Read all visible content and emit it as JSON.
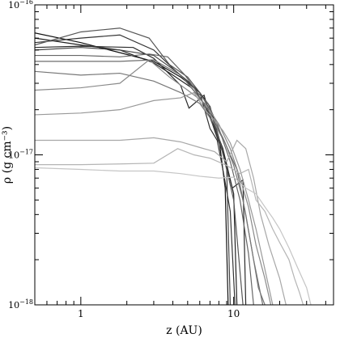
{
  "chart_data": {
    "type": "line",
    "title": "",
    "xlabel": "z (AU)",
    "ylabel": "ρ (g cm⁻³)",
    "x_scale": "log",
    "y_scale": "log",
    "xlim": [
      0.5,
      45
    ],
    "ylim": [
      1e-18,
      1e-16
    ],
    "x_ticks": [
      {
        "value": 1,
        "label": "1"
      },
      {
        "value": 10,
        "label": "10"
      }
    ],
    "y_ticks": [
      {
        "value": 1e-18,
        "mantissa": "10",
        "exponent": "−18"
      },
      {
        "value": 1e-17,
        "mantissa": "10",
        "exponent": "−17"
      },
      {
        "value": 1e-16,
        "mantissa": "10",
        "exponent": "−16"
      }
    ],
    "grid": false,
    "legend": "none",
    "series": [
      {
        "color": "#111111",
        "points": [
          [
            0.5,
            6.5e-17
          ],
          [
            1.0,
            5.6e-17
          ],
          [
            1.8,
            4.8e-17
          ],
          [
            3.0,
            4.2e-17
          ],
          [
            4.5,
            3.3e-17
          ],
          [
            6.0,
            2.6e-17
          ],
          [
            7.0,
            2.1e-17
          ],
          [
            8.0,
            1.3e-17
          ],
          [
            8.8,
            6e-18
          ],
          [
            9.2,
            1e-18
          ]
        ]
      },
      {
        "color": "#222222",
        "points": [
          [
            0.5,
            6e-17
          ],
          [
            1.0,
            5.4e-17
          ],
          [
            1.8,
            5e-17
          ],
          [
            3.0,
            4.1e-17
          ],
          [
            4.0,
            3.4e-17
          ],
          [
            5.3,
            2.8e-17
          ],
          [
            6.4,
            2.2e-17
          ],
          [
            7.3,
            1.65e-17
          ],
          [
            8.5,
            1.1e-17
          ],
          [
            10.0,
            5.5e-18
          ],
          [
            10.5,
            1e-18
          ]
        ]
      },
      {
        "color": "#333333",
        "points": [
          [
            0.5,
            5.6e-17
          ],
          [
            1.0,
            6e-17
          ],
          [
            1.8,
            6.3e-17
          ],
          [
            3.0,
            5e-17
          ],
          [
            4.2,
            3.6e-17
          ],
          [
            5.2,
            3e-17
          ],
          [
            6.0,
            2.6e-17
          ],
          [
            7.0,
            1.5e-17
          ],
          [
            7.8,
            1.25e-17
          ],
          [
            8.6,
            7.5e-18
          ],
          [
            9.5,
            4.2e-18
          ],
          [
            10.2,
            1e-18
          ]
        ]
      },
      {
        "color": "#2a2a2a",
        "points": [
          [
            0.5,
            5.2e-17
          ],
          [
            1.0,
            5.3e-17
          ],
          [
            2.2,
            5.2e-17
          ],
          [
            3.0,
            4.4e-17
          ],
          [
            4.5,
            2.9e-17
          ],
          [
            5.1,
            2.05e-17
          ],
          [
            6.4,
            2.5e-17
          ],
          [
            7.0,
            1.8e-17
          ],
          [
            7.6,
            1.4e-17
          ],
          [
            8.6,
            1e-17
          ],
          [
            9.8,
            6e-18
          ],
          [
            11.5,
            6.8e-18
          ],
          [
            12.0,
            1e-18
          ]
        ]
      },
      {
        "color": "#444444",
        "points": [
          [
            0.5,
            5e-17
          ],
          [
            1.0,
            5.2e-17
          ],
          [
            1.8,
            5e-17
          ],
          [
            3.0,
            4.6e-17
          ],
          [
            4.2,
            3.6e-17
          ],
          [
            5.5,
            2.8e-17
          ],
          [
            6.5,
            2.1e-17
          ],
          [
            7.5,
            1.5e-17
          ],
          [
            8.3,
            1.15e-17
          ],
          [
            9.0,
            8e-18
          ],
          [
            9.5,
            1e-18
          ]
        ]
      },
      {
        "color": "#555555",
        "points": [
          [
            0.5,
            5.4e-17
          ],
          [
            1.0,
            6.6e-17
          ],
          [
            1.8,
            7e-17
          ],
          [
            2.8,
            6e-17
          ],
          [
            3.8,
            4e-17
          ],
          [
            5.0,
            3.3e-17
          ],
          [
            6.0,
            2.6e-17
          ],
          [
            7.0,
            2e-17
          ],
          [
            8.0,
            1.3e-17
          ],
          [
            9.0,
            8e-18
          ],
          [
            10.0,
            5e-18
          ],
          [
            11.5,
            1e-18
          ]
        ]
      },
      {
        "color": "#666666",
        "points": [
          [
            0.5,
            4.6e-17
          ],
          [
            1.0,
            4.6e-17
          ],
          [
            1.8,
            4.5e-17
          ],
          [
            2.8,
            4.7e-17
          ],
          [
            3.7,
            4.5e-17
          ],
          [
            4.8,
            3.4e-17
          ],
          [
            5.8,
            2.6e-17
          ],
          [
            6.8,
            2.2e-17
          ],
          [
            8.0,
            1.5e-17
          ],
          [
            9.5,
            9e-18
          ],
          [
            11.0,
            5e-18
          ],
          [
            12.5,
            2.2e-18
          ],
          [
            13.5,
            1e-18
          ]
        ]
      },
      {
        "color": "#6e6e6e",
        "points": [
          [
            0.5,
            4.2e-17
          ],
          [
            1.0,
            4.2e-17
          ],
          [
            1.8,
            4.2e-17
          ],
          [
            3.0,
            4.3e-17
          ],
          [
            4.5,
            3.4e-17
          ],
          [
            6.0,
            2.4e-17
          ],
          [
            7.0,
            1.9e-17
          ],
          [
            8.5,
            1.3e-17
          ],
          [
            9.5,
            1e-17
          ],
          [
            10.5,
            8e-18
          ],
          [
            12.0,
            4e-18
          ],
          [
            13.5,
            2e-18
          ],
          [
            15.5,
            1e-18
          ]
        ]
      },
      {
        "color": "#777777",
        "points": [
          [
            0.5,
            3.6e-17
          ],
          [
            1.0,
            3.4e-17
          ],
          [
            1.8,
            3.5e-17
          ],
          [
            3.0,
            3.1e-17
          ],
          [
            4.5,
            2.6e-17
          ],
          [
            6.0,
            2.2e-17
          ],
          [
            7.5,
            1.6e-17
          ],
          [
            8.8,
            1.2e-17
          ],
          [
            10.0,
            8.5e-18
          ],
          [
            11.5,
            5e-18
          ],
          [
            13.0,
            2.5e-18
          ],
          [
            14.5,
            1.3e-18
          ],
          [
            16.0,
            1e-18
          ]
        ]
      },
      {
        "color": "#8a8a8a",
        "points": [
          [
            0.5,
            2.7e-17
          ],
          [
            1.0,
            2.8e-17
          ],
          [
            1.8,
            3e-17
          ],
          [
            2.8,
            4.3e-17
          ],
          [
            3.8,
            3.3e-17
          ],
          [
            5.0,
            2.7e-17
          ],
          [
            6.5,
            2.2e-17
          ],
          [
            8.0,
            1.6e-17
          ],
          [
            9.5,
            1.1e-17
          ],
          [
            11.0,
            7e-18
          ],
          [
            12.5,
            4.5e-18
          ],
          [
            14.0,
            2.5e-18
          ],
          [
            16.0,
            1.5e-18
          ],
          [
            17.5,
            1e-18
          ]
        ]
      },
      {
        "color": "#999999",
        "points": [
          [
            0.5,
            1.85e-17
          ],
          [
            1.0,
            1.9e-17
          ],
          [
            1.8,
            2e-17
          ],
          [
            3.0,
            2.3e-17
          ],
          [
            4.5,
            2.4e-17
          ],
          [
            5.5,
            2.6e-17
          ],
          [
            6.5,
            2e-17
          ],
          [
            7.5,
            1.7e-17
          ],
          [
            8.5,
            1.45e-17
          ],
          [
            9.5,
            1.2e-17
          ],
          [
            11.0,
            8e-18
          ],
          [
            12.5,
            5e-18
          ],
          [
            14.0,
            3.2e-18
          ],
          [
            15.5,
            2e-18
          ],
          [
            18.0,
            1e-18
          ]
        ]
      },
      {
        "color": "#a8a8a8",
        "points": [
          [
            0.5,
            1.25e-17
          ],
          [
            1.0,
            1.25e-17
          ],
          [
            1.8,
            1.25e-17
          ],
          [
            3.0,
            1.3e-17
          ],
          [
            4.5,
            1.22e-17
          ],
          [
            6.0,
            1.12e-17
          ],
          [
            7.5,
            1.05e-17
          ],
          [
            9.0,
            9e-18
          ],
          [
            10.5,
            1.25e-17
          ],
          [
            12.0,
            1.1e-17
          ],
          [
            13.5,
            7e-18
          ],
          [
            15.0,
            4e-18
          ],
          [
            17.0,
            2.5e-18
          ],
          [
            20.0,
            1.5e-18
          ],
          [
            22.0,
            1e-18
          ]
        ]
      },
      {
        "color": "#b5b5b5",
        "points": [
          [
            0.5,
            8.6e-18
          ],
          [
            1.0,
            8.6e-18
          ],
          [
            1.8,
            8.7e-18
          ],
          [
            3.0,
            8.8e-18
          ],
          [
            4.3,
            1.1e-17
          ],
          [
            5.5,
            1e-17
          ],
          [
            7.0,
            9.5e-18
          ],
          [
            9.0,
            8.5e-18
          ],
          [
            11.0,
            7.5e-18
          ],
          [
            12.5,
            8e-18
          ],
          [
            14.0,
            5e-18
          ],
          [
            16.0,
            4.2e-18
          ],
          [
            18.0,
            3.2e-18
          ],
          [
            20.0,
            2.6e-18
          ],
          [
            23.0,
            2e-18
          ],
          [
            25.0,
            1.5e-18
          ],
          [
            27.0,
            1.2e-18
          ],
          [
            28.5,
            1e-18
          ]
        ]
      },
      {
        "color": "#c5c5c5",
        "points": [
          [
            0.5,
            8.2e-18
          ],
          [
            1.0,
            8e-18
          ],
          [
            1.8,
            7.8e-18
          ],
          [
            3.0,
            7.8e-18
          ],
          [
            4.5,
            7.5e-18
          ],
          [
            6.0,
            7.2e-18
          ],
          [
            8.0,
            7e-18
          ],
          [
            10.0,
            7.1e-18
          ],
          [
            12.0,
            6e-18
          ],
          [
            14.0,
            5.5e-18
          ],
          [
            16.0,
            4.5e-18
          ],
          [
            18.0,
            3.8e-18
          ],
          [
            20.0,
            3.2e-18
          ],
          [
            23.0,
            2.4e-18
          ],
          [
            26.0,
            1.8e-18
          ],
          [
            30.0,
            1.3e-18
          ],
          [
            32.0,
            1e-18
          ]
        ]
      }
    ]
  }
}
